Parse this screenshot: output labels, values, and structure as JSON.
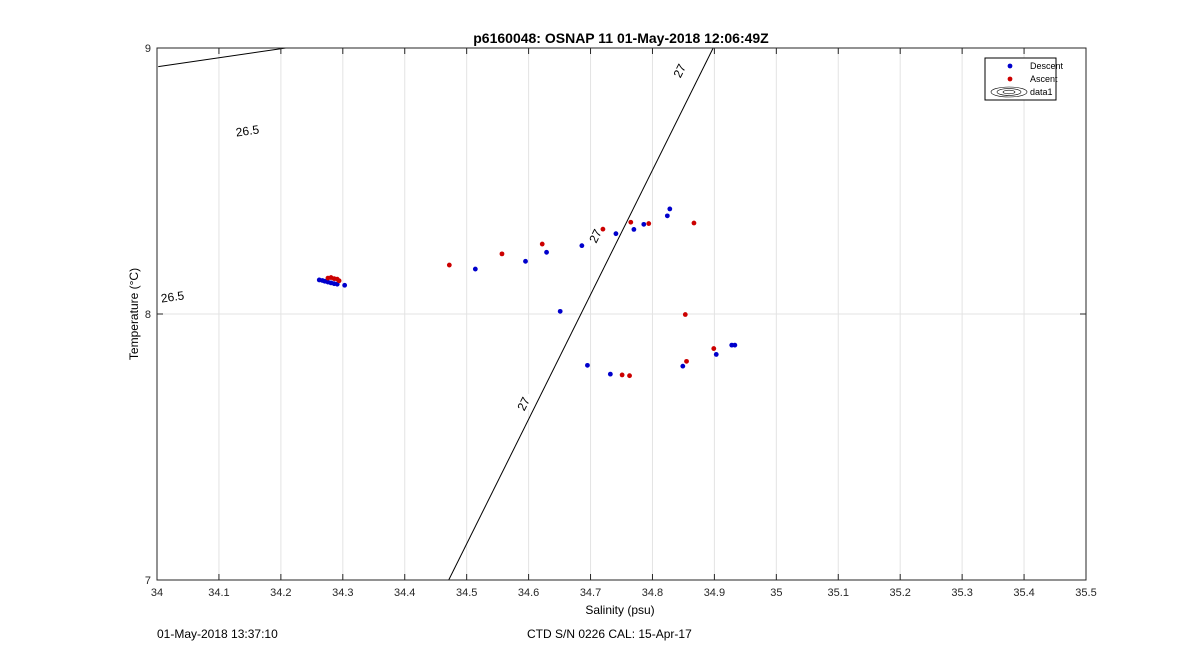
{
  "chart_data": {
    "type": "scatter",
    "title": "p6160048: OSNAP 11 01-May-2018 12:06:49Z",
    "xlabel": "Salinity (psu)",
    "ylabel": "Temperature (°C)",
    "xlim": [
      34,
      35.5
    ],
    "ylim": [
      7,
      9
    ],
    "x_ticks": [
      "34",
      "34.1",
      "34.2",
      "34.3",
      "34.4",
      "34.5",
      "34.6",
      "34.7",
      "34.8",
      "34.9",
      "35",
      "35.1",
      "35.2",
      "35.3",
      "35.4",
      "35.5"
    ],
    "y_ticks": [
      "7",
      "8",
      "9"
    ],
    "grid": true,
    "legend_position": "top-right",
    "series": [
      {
        "name": "Descent",
        "color": "#0000cc",
        "points": [
          [
            34.262,
            8.128
          ],
          [
            34.267,
            8.126
          ],
          [
            34.271,
            8.123
          ],
          [
            34.276,
            8.12
          ],
          [
            34.281,
            8.117
          ],
          [
            34.286,
            8.114
          ],
          [
            34.291,
            8.112
          ],
          [
            34.303,
            8.108
          ],
          [
            34.514,
            8.169
          ],
          [
            34.595,
            8.198
          ],
          [
            34.629,
            8.232
          ],
          [
            34.651,
            8.01
          ],
          [
            34.686,
            8.257
          ],
          [
            34.695,
            7.807
          ],
          [
            34.732,
            7.774
          ],
          [
            34.741,
            8.302
          ],
          [
            34.77,
            8.318
          ],
          [
            34.786,
            8.337
          ],
          [
            34.824,
            8.369
          ],
          [
            34.828,
            8.395
          ],
          [
            34.849,
            7.804
          ],
          [
            34.903,
            7.848
          ],
          [
            34.928,
            7.883
          ],
          [
            34.933,
            7.883
          ]
        ]
      },
      {
        "name": "Ascent",
        "color": "#cc0000",
        "points": [
          [
            34.276,
            8.135
          ],
          [
            34.281,
            8.137
          ],
          [
            34.286,
            8.133
          ],
          [
            34.291,
            8.131
          ],
          [
            34.294,
            8.125
          ],
          [
            34.472,
            8.184
          ],
          [
            34.557,
            8.226
          ],
          [
            34.622,
            8.263
          ],
          [
            34.72,
            8.319
          ],
          [
            34.751,
            7.771
          ],
          [
            34.763,
            7.768
          ],
          [
            34.765,
            8.345
          ],
          [
            34.794,
            8.34
          ],
          [
            34.853,
            7.998
          ],
          [
            34.855,
            7.822
          ],
          [
            34.867,
            8.342
          ],
          [
            34.899,
            7.87
          ]
        ]
      },
      {
        "name": "data1",
        "kind": "contour"
      }
    ],
    "contours": [
      {
        "label": "26.5",
        "line": [
          [
            34.002,
            8.93
          ],
          [
            34.208,
            9.0
          ]
        ],
        "label_positions": [
          [
            34.146,
            8.688
          ],
          [
            34.025,
            8.064
          ]
        ]
      },
      {
        "label": "27",
        "line": [
          [
            34.471,
            7.0
          ],
          [
            34.898,
            9.0
          ]
        ],
        "label_positions": [
          [
            34.844,
            8.914
          ],
          [
            34.708,
            8.293
          ],
          [
            34.592,
            7.662
          ]
        ]
      }
    ]
  },
  "footer": {
    "left": "01-May-2018 13:37:10",
    "center": "CTD S/N 0226  CAL: 15-Apr-17"
  }
}
